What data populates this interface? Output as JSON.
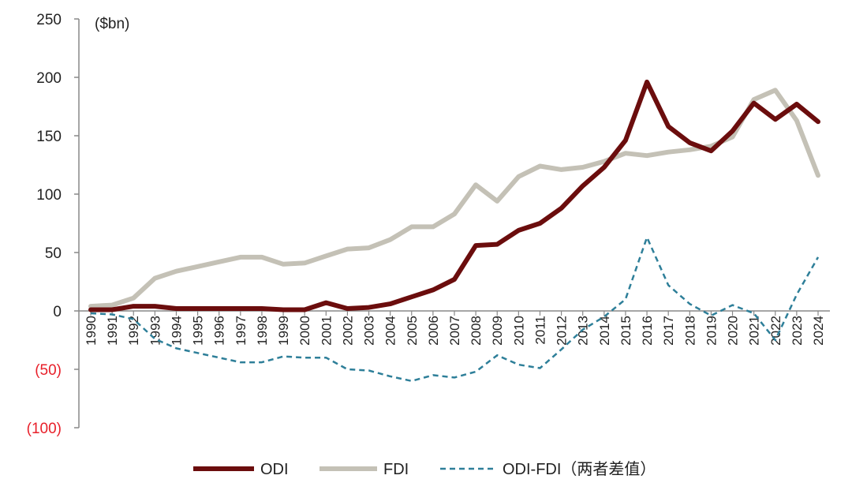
{
  "chart_data": {
    "type": "line",
    "ylabel": "($bn)",
    "ylim": [
      -100,
      250
    ],
    "yticks": [
      {
        "value": 250,
        "label": "250"
      },
      {
        "value": 200,
        "label": "200"
      },
      {
        "value": 150,
        "label": "150"
      },
      {
        "value": 100,
        "label": "100"
      },
      {
        "value": 50,
        "label": "50"
      },
      {
        "value": 0,
        "label": "0"
      },
      {
        "value": -50,
        "label": "(50)"
      },
      {
        "value": -100,
        "label": "(100)"
      }
    ],
    "negative_tick_color": "#e8202a",
    "x": [
      "1990",
      "1991",
      "1992",
      "1993",
      "1994",
      "1995",
      "1996",
      "1997",
      "1998",
      "1999",
      "2000",
      "2001",
      "2002",
      "2003",
      "2004",
      "2005",
      "2006",
      "2007",
      "2008",
      "2009",
      "2010",
      "2011",
      "2012",
      "2013",
      "2014",
      "2015",
      "2016",
      "2017",
      "2018",
      "2019",
      "2020",
      "2021",
      "2022",
      "2023",
      "2024"
    ],
    "series": [
      {
        "name": "ODI",
        "color": "#6b0d0d",
        "style": "solid-thick",
        "values": [
          1,
          1,
          4,
          4,
          2,
          2,
          2,
          2,
          2,
          1,
          1,
          7,
          2,
          3,
          6,
          12,
          18,
          27,
          56,
          57,
          69,
          75,
          88,
          107,
          123,
          146,
          196,
          158,
          144,
          137,
          154,
          178,
          164,
          177,
          162
        ]
      },
      {
        "name": "FDI",
        "color": "#c4c1b6",
        "style": "solid-thick",
        "values": [
          4,
          5,
          11,
          28,
          34,
          38,
          42,
          46,
          46,
          40,
          41,
          47,
          53,
          54,
          61,
          72,
          72,
          83,
          108,
          94,
          115,
          124,
          121,
          123,
          128,
          135,
          133,
          136,
          138,
          141,
          149,
          181,
          189,
          163,
          116
        ]
      },
      {
        "name": "ODI-FDI（两者差值）",
        "color": "#2e7f99",
        "style": "dashed",
        "values": [
          -2,
          -3,
          -7,
          -24,
          -32,
          -36,
          -40,
          -44,
          -44,
          -39,
          -40,
          -40,
          -50,
          -51,
          -56,
          -60,
          -55,
          -57,
          -52,
          -38,
          -46,
          -49,
          -33,
          -16,
          -5,
          10,
          63,
          22,
          6,
          -4,
          5,
          -2,
          -25,
          14,
          46
        ]
      }
    ],
    "legend": {
      "placement": "bottom-center"
    },
    "grid": false
  }
}
